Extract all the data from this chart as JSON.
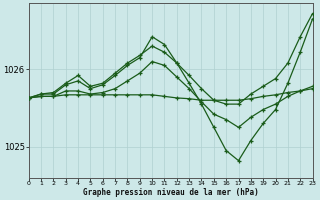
{
  "title": "Graphe pression niveau de la mer (hPa)",
  "background_color": "#cde8e8",
  "grid_color": "#b0d0d0",
  "line_color": "#1a5c1a",
  "spine_color": "#555555",
  "xlim": [
    0,
    23
  ],
  "ylim": [
    1024.6,
    1026.85
  ],
  "yticks": [
    1025,
    1026
  ],
  "ytick_labels": [
    "1025",
    "1026"
  ],
  "xticks": [
    0,
    1,
    2,
    3,
    4,
    5,
    6,
    7,
    8,
    9,
    10,
    11,
    12,
    13,
    14,
    15,
    16,
    17,
    18,
    19,
    20,
    21,
    22,
    23
  ],
  "series": [
    {
      "x": [
        0,
        1,
        2,
        3,
        4,
        5,
        6,
        7,
        8,
        9,
        10,
        11,
        12,
        13,
        14,
        15,
        16,
        17,
        18,
        19,
        20,
        21,
        22,
        23
      ],
      "y": [
        1025.63,
        1025.65,
        1025.65,
        1025.67,
        1025.67,
        1025.67,
        1025.67,
        1025.67,
        1025.67,
        1025.67,
        1025.67,
        1025.65,
        1025.63,
        1025.62,
        1025.6,
        1025.6,
        1025.6,
        1025.6,
        1025.62,
        1025.65,
        1025.67,
        1025.7,
        1025.72,
        1025.75
      ]
    },
    {
      "x": [
        0,
        1,
        2,
        3,
        4,
        5,
        6,
        7,
        8,
        9,
        10,
        11,
        12,
        13,
        14,
        15,
        16,
        17,
        18,
        19,
        20,
        21,
        22,
        23
      ],
      "y": [
        1025.63,
        1025.65,
        1025.65,
        1025.72,
        1025.72,
        1025.68,
        1025.7,
        1025.75,
        1025.85,
        1025.95,
        1026.1,
        1026.05,
        1025.9,
        1025.75,
        1025.58,
        1025.42,
        1025.35,
        1025.25,
        1025.38,
        1025.48,
        1025.55,
        1025.65,
        1025.72,
        1025.78
      ]
    },
    {
      "x": [
        0,
        1,
        2,
        3,
        4,
        5,
        6,
        7,
        8,
        9,
        10,
        11,
        12,
        13,
        14,
        15,
        16,
        17,
        18,
        19,
        20,
        21,
        22,
        23
      ],
      "y": [
        1025.63,
        1025.68,
        1025.68,
        1025.8,
        1025.85,
        1025.75,
        1025.8,
        1025.92,
        1026.05,
        1026.15,
        1026.42,
        1026.32,
        1026.08,
        1025.82,
        1025.55,
        1025.25,
        1024.95,
        1024.82,
        1025.08,
        1025.3,
        1025.48,
        1025.82,
        1026.22,
        1026.65
      ]
    },
    {
      "x": [
        0,
        1,
        2,
        3,
        4,
        5,
        6,
        7,
        8,
        9,
        10,
        11,
        12,
        13,
        14,
        15,
        16,
        17,
        18,
        19,
        20,
        21,
        22,
        23
      ],
      "y": [
        1025.63,
        1025.68,
        1025.7,
        1025.82,
        1025.92,
        1025.78,
        1025.82,
        1025.95,
        1026.08,
        1026.18,
        1026.3,
        1026.22,
        1026.08,
        1025.92,
        1025.75,
        1025.6,
        1025.55,
        1025.55,
        1025.68,
        1025.78,
        1025.88,
        1026.08,
        1026.42,
        1026.72
      ]
    }
  ]
}
